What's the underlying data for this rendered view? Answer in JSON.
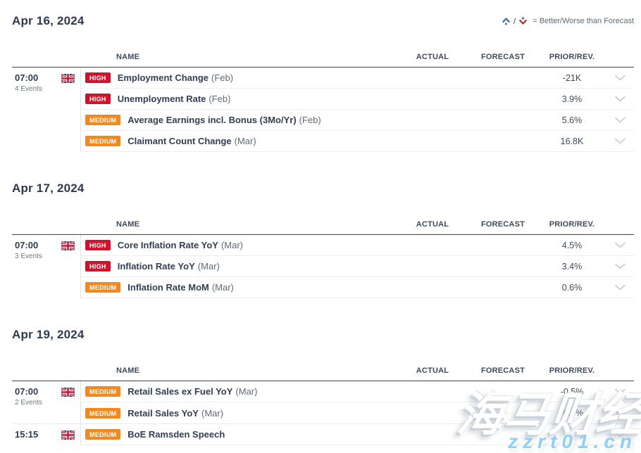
{
  "page": {
    "legend": {
      "up_icon": "better-arrow-up",
      "down_icon": "worse-arrow-down",
      "separator": "/",
      "text": "= Better/Worse than Forecast"
    },
    "columns": {
      "name": "NAME",
      "actual": "ACTUAL",
      "forecast": "FORECAST",
      "prior": "PRIOR/REV."
    },
    "colors": {
      "high_badge": "#d0122c",
      "medium_badge": "#f2891e",
      "heading_navy": "#2e3a52",
      "legend_better_blue": "#3a6fb5",
      "legend_worse_red": "#b23430",
      "watermark_blue": "#8ed1f3"
    },
    "watermark": {
      "line1": "海马财经",
      "line2": "zzrt01.cn"
    },
    "sections": [
      {
        "date": "Apr 16, 2024",
        "groups": [
          {
            "time": "07:00",
            "events_count_label": "4 Events",
            "country_flag": "uk-flag",
            "events": [
              {
                "importance": "HIGH",
                "name": "Employment Change",
                "period": "(Feb)",
                "actual": "",
                "forecast": "",
                "prior": "-21K"
              },
              {
                "importance": "HIGH",
                "name": "Unemployment Rate",
                "period": "(Feb)",
                "actual": "",
                "forecast": "",
                "prior": "3.9%"
              },
              {
                "importance": "MEDIUM",
                "name": "Average Earnings incl. Bonus (3Mo/Yr)",
                "period": "(Feb)",
                "actual": "",
                "forecast": "",
                "prior": "5.6%"
              },
              {
                "importance": "MEDIUM",
                "name": "Claimant Count Change",
                "period": "(Mar)",
                "actual": "",
                "forecast": "",
                "prior": "16.8K"
              }
            ]
          }
        ]
      },
      {
        "date": "Apr 17, 2024",
        "groups": [
          {
            "time": "07:00",
            "events_count_label": "3 Events",
            "country_flag": "uk-flag",
            "events": [
              {
                "importance": "HIGH",
                "name": "Core Inflation Rate YoY",
                "period": "(Mar)",
                "actual": "",
                "forecast": "",
                "prior": "4.5%"
              },
              {
                "importance": "HIGH",
                "name": "Inflation Rate YoY",
                "period": "(Mar)",
                "actual": "",
                "forecast": "",
                "prior": "3.4%"
              },
              {
                "importance": "MEDIUM",
                "name": "Inflation Rate MoM",
                "period": "(Mar)",
                "actual": "",
                "forecast": "",
                "prior": "0.6%"
              }
            ]
          }
        ]
      },
      {
        "date": "Apr 19, 2024",
        "groups": [
          {
            "time": "07:00",
            "events_count_label": "2 Events",
            "country_flag": "uk-flag",
            "events": [
              {
                "importance": "MEDIUM",
                "name": "Retail Sales ex Fuel YoY",
                "period": "(Mar)",
                "actual": "",
                "forecast": "",
                "prior": "-0.5%"
              },
              {
                "importance": "MEDIUM",
                "name": "Retail Sales YoY",
                "period": "(Mar)",
                "actual": "",
                "forecast": "",
                "prior": "-0.4%"
              }
            ]
          },
          {
            "time": "15:15",
            "events_count_label": "",
            "country_flag": "uk-flag",
            "events": [
              {
                "importance": "MEDIUM",
                "name": "BoE Ramsden Speech",
                "period": "",
                "actual": "",
                "forecast": "",
                "prior": ""
              }
            ]
          }
        ]
      }
    ]
  }
}
